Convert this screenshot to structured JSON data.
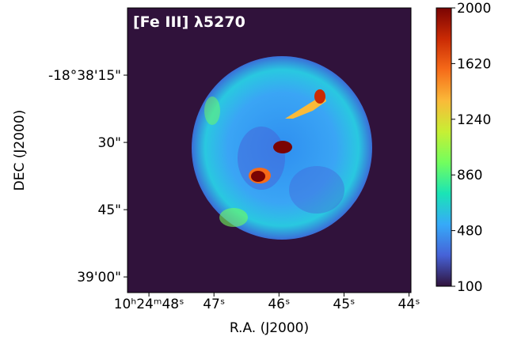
{
  "chart_data": {
    "type": "image",
    "title": "[Fe III] λ5270",
    "xlabel": "R.A. (J2000)",
    "ylabel": "DEC (J2000)",
    "xlim": [
      48.33,
      43.97
    ],
    "xticks": [
      {
        "value": 48,
        "label": "10ʰ24ᵐ48ˢ"
      },
      {
        "value": 47,
        "label": "47ˢ"
      },
      {
        "value": 46,
        "label": "46ˢ"
      },
      {
        "value": 45,
        "label": "45ˢ"
      },
      {
        "value": 44,
        "label": "44ˢ"
      }
    ],
    "ylim": [
      63.5,
      0
    ],
    "yticks": [
      {
        "value": 15,
        "label": "-18°38'15\""
      },
      {
        "value": 30,
        "label": "30\""
      },
      {
        "value": 45,
        "label": "45\""
      },
      {
        "value": 60,
        "label": "39'00\""
      }
    ],
    "colorbar": {
      "lim": [
        100,
        2000
      ],
      "ticks": [
        100,
        480,
        860,
        1240,
        1620,
        2000
      ],
      "colors": [
        "#30123b",
        "#4662d7",
        "#36aaf9",
        "#1ae4b6",
        "#72fe5e",
        "#c7ef34",
        "#faba39",
        "#f66b19",
        "#ca2a04",
        "#7a0403"
      ]
    }
  }
}
